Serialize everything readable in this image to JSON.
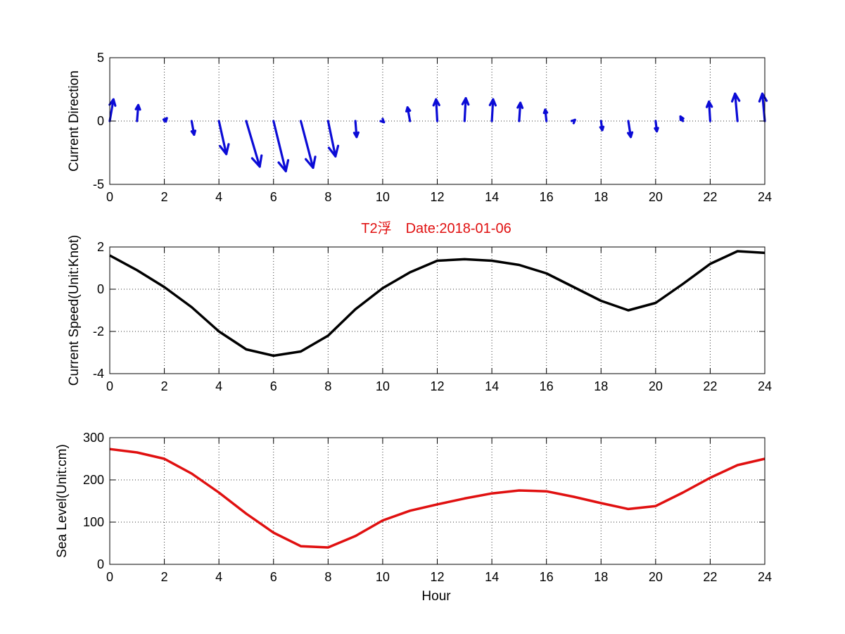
{
  "figure": {
    "title": "T2浮　Date:2018-01-06",
    "title_color": "#e01010",
    "xlabel": "Hour"
  },
  "chart_data": [
    {
      "type": "quiver",
      "ylabel": "Current Direction",
      "xlim": [
        0,
        24
      ],
      "ylim": [
        -5,
        5
      ],
      "xticks": [
        "0",
        "2",
        "4",
        "6",
        "8",
        "10",
        "12",
        "14",
        "16",
        "18",
        "20",
        "22",
        "24"
      ],
      "yticks": [
        "-5",
        "0",
        "5"
      ],
      "grid": true,
      "color": "#0b0bd6",
      "x": [
        0,
        1,
        2,
        3,
        4,
        5,
        6,
        7,
        8,
        9,
        10,
        11,
        12,
        13,
        14,
        15,
        16,
        17,
        18,
        19,
        20,
        21,
        22,
        23,
        24
      ],
      "u": [
        0.15,
        0.05,
        0.1,
        0.1,
        0.3,
        0.55,
        0.5,
        0.5,
        0.3,
        0.05,
        0.05,
        -0.1,
        -0.05,
        0.05,
        0.05,
        0.05,
        -0.05,
        0.05,
        0.05,
        0.1,
        0.05,
        -0.1,
        -0.05,
        -0.1,
        -0.1
      ],
      "v": [
        1.9,
        1.4,
        0.25,
        -1.2,
        -2.9,
        -4.0,
        -4.4,
        -4.1,
        -3.1,
        -1.4,
        -0.1,
        1.2,
        1.9,
        2.0,
        1.9,
        1.6,
        1.0,
        0.1,
        -0.8,
        -1.4,
        -0.9,
        0.4,
        1.7,
        2.4,
        2.4
      ]
    },
    {
      "type": "line",
      "ylabel": "Current Speed(Unit:Knot)",
      "xlim": [
        0,
        24
      ],
      "ylim": [
        -4,
        2
      ],
      "xticks": [
        "0",
        "2",
        "4",
        "6",
        "8",
        "10",
        "12",
        "14",
        "16",
        "18",
        "20",
        "22",
        "24"
      ],
      "yticks": [
        "-4",
        "-2",
        "0",
        "2"
      ],
      "grid": true,
      "color": "#000000",
      "x": [
        0,
        1,
        2,
        3,
        4,
        5,
        6,
        7,
        8,
        9,
        10,
        11,
        12,
        13,
        14,
        15,
        16,
        17,
        18,
        19,
        20,
        21,
        22,
        23,
        24
      ],
      "values": [
        1.6,
        0.9,
        0.1,
        -0.85,
        -2.0,
        -2.85,
        -3.15,
        -2.95,
        -2.2,
        -0.95,
        0.05,
        0.8,
        1.35,
        1.42,
        1.35,
        1.15,
        0.75,
        0.1,
        -0.55,
        -1.0,
        -0.65,
        0.25,
        1.2,
        1.8,
        1.72
      ]
    },
    {
      "type": "line",
      "ylabel": "Sea Level(Unit:cm)",
      "xlabel": "Hour",
      "xlim": [
        0,
        24
      ],
      "ylim": [
        0,
        300
      ],
      "xticks": [
        "0",
        "2",
        "4",
        "6",
        "8",
        "10",
        "12",
        "14",
        "16",
        "18",
        "20",
        "22",
        "24"
      ],
      "yticks": [
        "0",
        "100",
        "200",
        "300"
      ],
      "grid": true,
      "color": "#e01010",
      "x": [
        0,
        1,
        2,
        3,
        4,
        5,
        6,
        7,
        8,
        9,
        10,
        11,
        12,
        13,
        14,
        15,
        16,
        17,
        18,
        19,
        20,
        21,
        22,
        23,
        24
      ],
      "values": [
        273,
        265,
        250,
        215,
        170,
        120,
        75,
        43,
        40,
        67,
        104,
        127,
        142,
        156,
        168,
        175,
        173,
        160,
        145,
        131,
        138,
        170,
        205,
        235,
        250
      ]
    }
  ]
}
